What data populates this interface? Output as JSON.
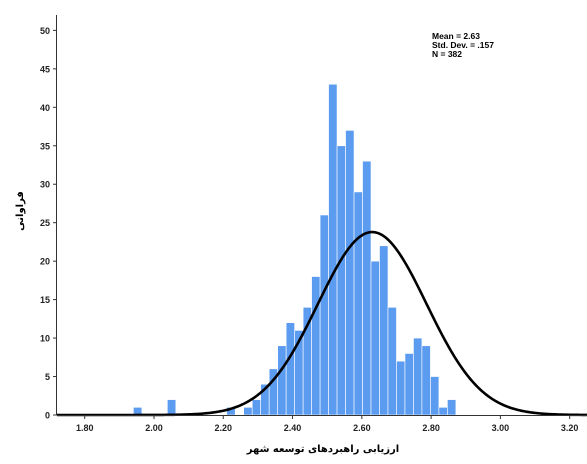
{
  "chart_data": {
    "type": "bar",
    "title": "",
    "xlabel": "ارزیابی راهبردهای توسعه شهر",
    "ylabel": "فراوانی",
    "xlim": [
      1.72,
      3.25
    ],
    "ylim": [
      0,
      52
    ],
    "grid": false,
    "bar_color": "#5b9bf0",
    "curve_color": "#000000",
    "x_ticks": [
      "1.80",
      "2.00",
      "2.20",
      "2.40",
      "2.60",
      "2.80",
      "3.00",
      "3.20"
    ],
    "y_ticks": [
      "0",
      "5",
      "10",
      "15",
      "20",
      "25",
      "30",
      "35",
      "40",
      "45",
      "50"
    ],
    "bin_start": 1.72,
    "bin_width": 0.0245,
    "values": [
      0,
      0,
      0,
      0,
      0,
      0,
      0,
      0,
      0,
      1,
      0,
      0,
      0,
      2,
      0,
      0,
      0,
      0,
      0,
      0,
      1,
      0,
      1,
      2,
      4,
      6,
      9,
      12,
      11,
      14,
      18,
      26,
      43,
      35,
      37,
      29,
      33,
      20,
      22,
      14,
      7,
      8,
      10,
      9,
      5,
      1,
      2,
      0,
      0,
      0,
      0,
      0,
      0,
      0,
      0,
      0,
      0,
      0,
      0,
      0,
      0,
      0
    ],
    "normal_curve": {
      "mean": 2.63,
      "sd": 0.157,
      "n": 382
    },
    "stats": {
      "mean": "Mean = 2.63",
      "sd": "Std. Dev. = .157",
      "n": "N = 382"
    }
  }
}
